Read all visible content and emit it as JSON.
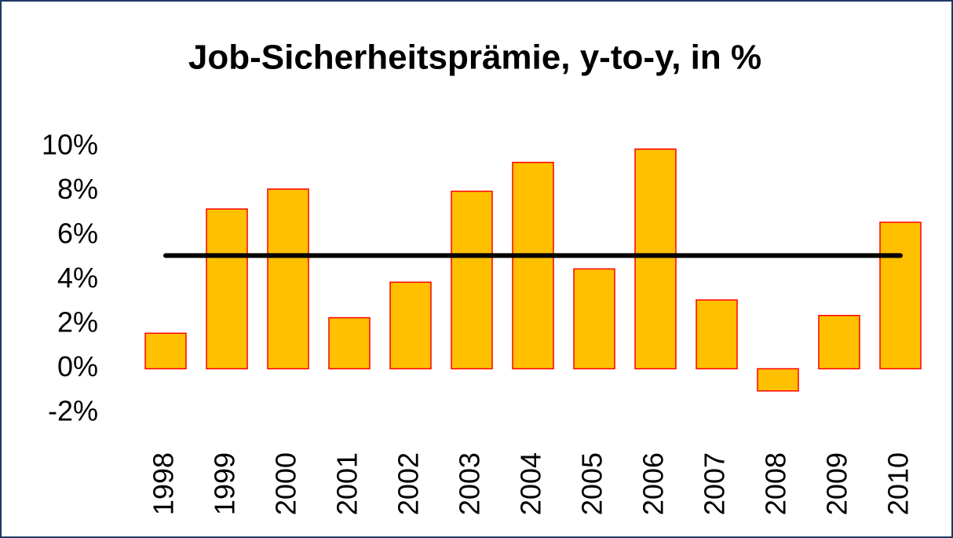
{
  "chart_data": {
    "type": "bar",
    "title": "Job-Sicherheitsprämie, y-to-y, in %",
    "categories": [
      "1998",
      "1999",
      "2000",
      "2001",
      "2002",
      "2003",
      "2004",
      "2005",
      "2006",
      "2007",
      "2008",
      "2009",
      "2010"
    ],
    "values": [
      1.6,
      7.2,
      8.1,
      2.3,
      3.9,
      8.0,
      9.3,
      4.5,
      9.9,
      3.1,
      -1.0,
      2.4,
      6.6
    ],
    "color": "#FFC000",
    "edge_color": "#FF0000",
    "reference_line": {
      "value": 5.1,
      "color": "#000000"
    },
    "ylim": [
      -2,
      10
    ],
    "yticks": [
      {
        "value": -2,
        "label": "-2%"
      },
      {
        "value": 0,
        "label": "0%"
      },
      {
        "value": 2,
        "label": "2%"
      },
      {
        "value": 4,
        "label": "4%"
      },
      {
        "value": 6,
        "label": "6%"
      },
      {
        "value": 8,
        "label": "8%"
      },
      {
        "value": 10,
        "label": "10%"
      }
    ],
    "grid": false
  }
}
